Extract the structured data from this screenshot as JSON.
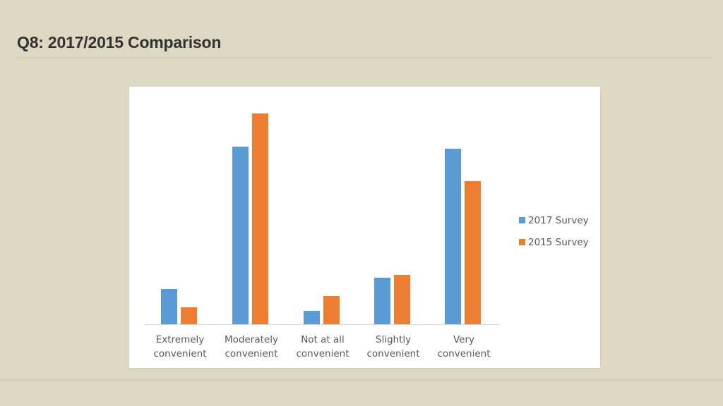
{
  "slide": {
    "title": "Q8: 2017/2015 Comparison"
  },
  "colors": {
    "series_2017": "#5b9bd5",
    "series_2015": "#ed7d31",
    "background": "#dcd8c1"
  },
  "chart_data": {
    "type": "bar",
    "title": "",
    "xlabel": "",
    "ylabel": "",
    "grid": false,
    "legend_position": "right",
    "note": "No y-axis shown; values are relative bar heights (pixels above baseline).",
    "categories": [
      "Extremely convenient",
      "Moderately convenient",
      "Not at all convenient",
      "Slightly convenient",
      "Very convenient"
    ],
    "category_lines": [
      [
        "Extremely",
        "convenient"
      ],
      [
        "Moderately",
        "convenient"
      ],
      [
        "Not at all",
        "convenient"
      ],
      [
        "Slightly",
        "convenient"
      ],
      [
        "Very",
        "convenient"
      ]
    ],
    "series": [
      {
        "name": "2017 Survey",
        "color": "#5b9bd5",
        "values": [
          50,
          252,
          19,
          66,
          249
        ]
      },
      {
        "name": "2015 Survey",
        "color": "#ed7d31",
        "values": [
          24,
          299,
          40,
          70,
          203
        ]
      }
    ],
    "ylim": [
      0,
      337
    ]
  }
}
